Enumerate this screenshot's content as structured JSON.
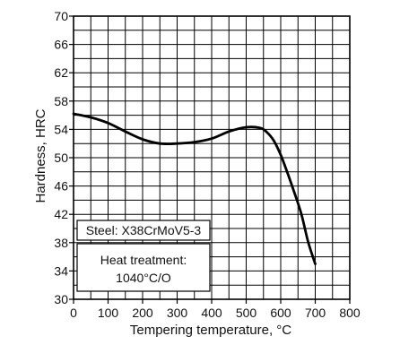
{
  "chart_data": {
    "type": "line",
    "xlabel": "Tempering temperature, °C",
    "ylabel": "Hardness, HRC",
    "xlim": [
      0,
      800
    ],
    "ylim": [
      30,
      70
    ],
    "x_ticks": [
      "0",
      "100",
      "200",
      "300",
      "400",
      "500",
      "600",
      "700",
      "800"
    ],
    "y_ticks": [
      "30",
      "34",
      "38",
      "42",
      "46",
      "50",
      "54",
      "58",
      "62",
      "66",
      "70"
    ],
    "grid": true,
    "x_minor_step": 50,
    "y_minor_step": 2,
    "series": [
      {
        "x": [
          0,
          50,
          100,
          150,
          200,
          250,
          300,
          350,
          400,
          450,
          500,
          540,
          560,
          580,
          600,
          620,
          640,
          660,
          680,
          700
        ],
        "y": [
          56.2,
          55.7,
          54.9,
          53.7,
          52.6,
          52.0,
          52.0,
          52.2,
          52.7,
          53.7,
          54.3,
          54.2,
          53.6,
          52.4,
          50.4,
          47.8,
          45.0,
          42.0,
          38.0,
          35.0
        ]
      }
    ],
    "annotations": {
      "steel": "Steel: X38CrMoV5-3",
      "heat_treatment_line1": "Heat treatment:",
      "heat_treatment_line2": "1040°C/O"
    }
  }
}
